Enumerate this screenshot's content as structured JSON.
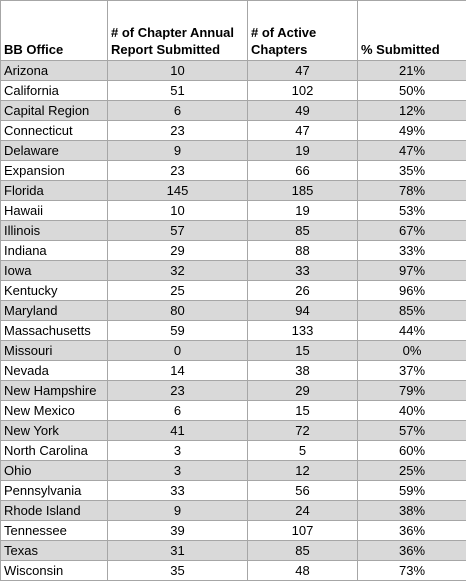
{
  "table": {
    "header": [
      "BB Office",
      "# of Chapter Annual Report Submitted",
      "# of Active Chapters",
      "% Submitted"
    ],
    "rows": [
      [
        "Arizona",
        10,
        47,
        "21%"
      ],
      [
        "California",
        51,
        102,
        "50%"
      ],
      [
        "Capital Region",
        6,
        49,
        "12%"
      ],
      [
        "Connecticut",
        23,
        47,
        "49%"
      ],
      [
        "Delaware",
        9,
        19,
        "47%"
      ],
      [
        "Expansion",
        23,
        66,
        "35%"
      ],
      [
        "Florida",
        145,
        185,
        "78%"
      ],
      [
        "Hawaii",
        10,
        19,
        "53%"
      ],
      [
        "Illinois",
        57,
        85,
        "67%"
      ],
      [
        "Indiana",
        29,
        88,
        "33%"
      ],
      [
        "Iowa",
        32,
        33,
        "97%"
      ],
      [
        "Kentucky",
        25,
        26,
        "96%"
      ],
      [
        "Maryland",
        80,
        94,
        "85%"
      ],
      [
        "Massachusetts",
        59,
        133,
        "44%"
      ],
      [
        "Missouri",
        0,
        15,
        "0%"
      ],
      [
        "Nevada",
        14,
        38,
        "37%"
      ],
      [
        "New Hampshire",
        23,
        29,
        "79%"
      ],
      [
        "New Mexico",
        6,
        15,
        "40%"
      ],
      [
        "New York",
        41,
        72,
        "57%"
      ],
      [
        "North Carolina",
        3,
        5,
        "60%"
      ],
      [
        "Ohio",
        3,
        12,
        "25%"
      ],
      [
        "Pennsylvania",
        33,
        56,
        "59%"
      ],
      [
        "Rhode Island",
        9,
        24,
        "38%"
      ],
      [
        "Tennessee",
        39,
        107,
        "36%"
      ],
      [
        "Texas",
        31,
        85,
        "36%"
      ],
      [
        "Wisconsin",
        35,
        48,
        "73%"
      ]
    ]
  }
}
